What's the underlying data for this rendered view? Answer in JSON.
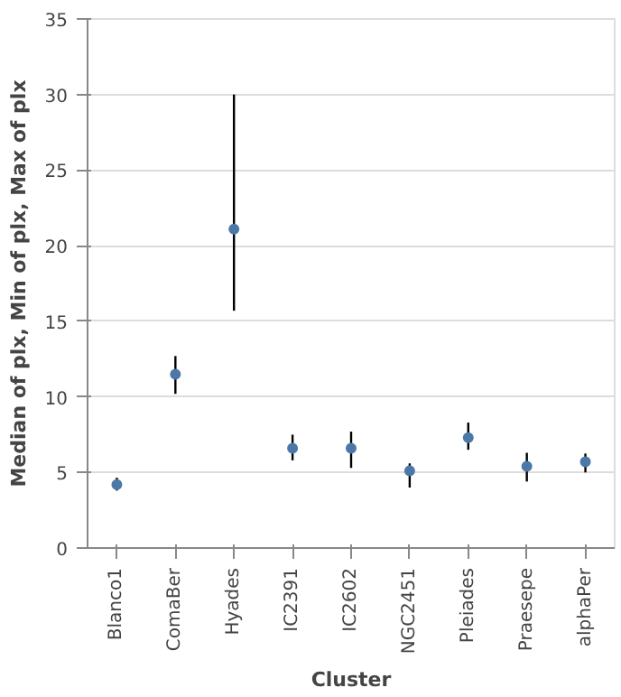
{
  "chart_data": {
    "type": "scatter",
    "xlabel": "Cluster",
    "ylabel": "Median of plx, Min of plx, Max of plx",
    "categories": [
      "Blanco1",
      "ComaBer",
      "Hyades",
      "IC2391",
      "IC2602",
      "NGC2451",
      "Pleiades",
      "Praesepe",
      "alphaPer"
    ],
    "series": [
      {
        "color": "#4c78a8",
        "values": [
          4.2,
          11.5,
          21.1,
          6.6,
          6.6,
          5.1,
          7.3,
          5.4,
          5.7
        ],
        "errors": [
          [
            3.8,
            4.65
          ],
          [
            10.2,
            12.7
          ],
          [
            15.7,
            30.0
          ],
          [
            5.8,
            7.5
          ],
          [
            5.3,
            7.7
          ],
          [
            4.0,
            5.6
          ],
          [
            6.5,
            8.3
          ],
          [
            4.4,
            6.3
          ],
          [
            5.0,
            6.25
          ]
        ]
      }
    ],
    "ylim": [
      0,
      35
    ],
    "yticks": [
      0,
      5,
      10,
      15,
      20,
      25,
      30,
      35
    ],
    "grid": "y",
    "marker": "circle"
  }
}
